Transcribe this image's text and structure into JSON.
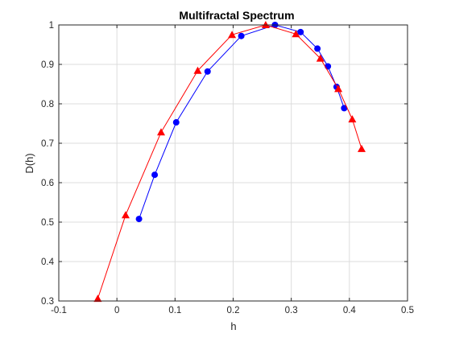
{
  "chart_data": {
    "type": "line",
    "title": "Multifractal Spectrum",
    "xlabel": "h",
    "ylabel": "D(h)",
    "xlim": [
      -0.1,
      0.5
    ],
    "ylim": [
      0.3,
      1.0
    ],
    "xticks": [
      "-0.1",
      "0",
      "0.1",
      "0.2",
      "0.3",
      "0.4",
      "0.5"
    ],
    "yticks": [
      "0.3",
      "0.4",
      "0.5",
      "0.6",
      "0.7",
      "0.8",
      "0.9",
      "1"
    ],
    "grid": true,
    "legend": "none",
    "series": [
      {
        "color": "#0000ff",
        "marker": "circle",
        "x": [
          0.038,
          0.065,
          0.102,
          0.156,
          0.214,
          0.272,
          0.316,
          0.345,
          0.363,
          0.378,
          0.391
        ],
        "y": [
          0.508,
          0.62,
          0.753,
          0.882,
          0.972,
          1.0,
          0.982,
          0.94,
          0.895,
          0.843,
          0.789
        ]
      },
      {
        "color": "#ff0000",
        "marker": "triangle",
        "x": [
          -0.033,
          0.015,
          0.076,
          0.139,
          0.198,
          0.256,
          0.308,
          0.35,
          0.381,
          0.405,
          0.421
        ],
        "y": [
          0.306,
          0.518,
          0.728,
          0.884,
          0.975,
          1.0,
          0.977,
          0.915,
          0.838,
          0.761,
          0.686
        ]
      }
    ]
  }
}
